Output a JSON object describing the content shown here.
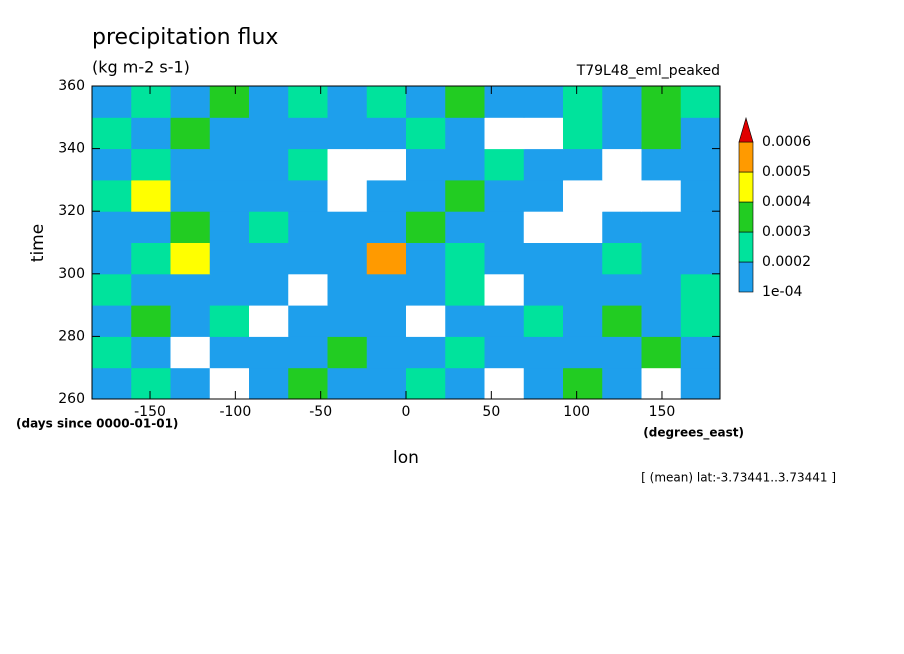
{
  "chart_data": {
    "type": "contour",
    "title": "precipitation flux",
    "subtitle": "(kg m-2 s-1)",
    "dataset": "T79L48_eml_peaked",
    "x_label": "lon",
    "x_units": "(degrees_east)",
    "y_label": "time",
    "y_units": "(days since 0000-01-01)",
    "annotation": "[ (mean) lat:-3.73441..3.73441 ]",
    "xlim": [
      -184,
      184
    ],
    "xticks": [
      -150,
      -100,
      -50,
      0,
      50,
      100,
      150
    ],
    "ylim": [
      260,
      360
    ],
    "yticks": [
      260,
      280,
      300,
      320,
      340,
      360
    ],
    "x": [
      -172.5,
      -149.5,
      -126.5,
      -103.5,
      -80.5,
      -57.5,
      -34.5,
      -11.5,
      11.5,
      34.5,
      57.5,
      80.5,
      103.5,
      126.5,
      149.5,
      172.5
    ],
    "y": [
      265,
      275,
      285,
      295,
      305,
      315,
      325,
      335,
      345,
      355
    ],
    "z": [
      [
        0.00015,
        0.00025,
        0.00015,
        5e-05,
        0.00015,
        0.00035,
        0.00015,
        0.00015,
        0.00025,
        0.00015,
        5e-05,
        0.00015,
        0.00035,
        0.00015,
        5e-05,
        0.00015
      ],
      [
        0.00025,
        0.00015,
        5e-05,
        0.00015,
        0.00015,
        0.00015,
        0.00035,
        0.00015,
        0.00015,
        0.00025,
        0.00015,
        0.00015,
        0.00015,
        0.00015,
        0.00035,
        0.00015
      ],
      [
        0.00015,
        0.00035,
        0.00015,
        0.00025,
        5e-05,
        0.00015,
        0.00015,
        0.00015,
        5e-05,
        0.00015,
        0.00015,
        0.00025,
        0.00015,
        0.00035,
        0.00015,
        0.00025
      ],
      [
        0.00025,
        0.00015,
        0.00015,
        0.00015,
        0.00015,
        5e-05,
        0.00015,
        0.00015,
        0.00015,
        0.00025,
        5e-05,
        0.00015,
        0.00015,
        0.00015,
        0.00015,
        0.00025
      ],
      [
        0.00015,
        0.00025,
        0.00045,
        0.00015,
        0.00015,
        0.00015,
        0.00015,
        0.00055,
        0.00015,
        0.00025,
        0.00015,
        0.00015,
        0.00015,
        0.00025,
        0.00015,
        0.00015
      ],
      [
        0.00015,
        0.00015,
        0.00035,
        0.00015,
        0.00025,
        0.00015,
        0.00015,
        0.00015,
        0.00035,
        0.00015,
        0.00015,
        5e-05,
        5e-05,
        0.00015,
        0.00015,
        0.00015
      ],
      [
        0.00025,
        0.00045,
        0.00015,
        0.00015,
        0.00015,
        0.00015,
        5e-05,
        0.00015,
        0.00015,
        0.00035,
        0.00015,
        0.00015,
        5e-05,
        5e-05,
        5e-05,
        0.00015
      ],
      [
        0.00015,
        0.00025,
        0.00015,
        0.00015,
        0.00015,
        0.00025,
        5e-05,
        5e-05,
        0.00015,
        0.00015,
        0.00025,
        0.00015,
        0.00015,
        5e-05,
        0.00015,
        0.00015
      ],
      [
        0.00025,
        0.00015,
        0.00035,
        0.00015,
        0.00015,
        0.00015,
        0.00015,
        0.00015,
        0.00025,
        0.00015,
        5e-05,
        5e-05,
        0.00025,
        0.00015,
        0.00035,
        0.00015
      ],
      [
        0.00015,
        0.00025,
        0.00015,
        0.00035,
        0.00015,
        0.00025,
        0.00015,
        0.00025,
        0.00015,
        0.00035,
        0.00015,
        0.00015,
        0.00025,
        0.00015,
        0.00035,
        0.00025
      ]
    ],
    "levels": [
      {
        "value": 0.0001,
        "label": "1e-04"
      },
      0.0002,
      0.0003,
      0.0004,
      0.0005,
      0.0006
    ],
    "colors": [
      "#1e9fec",
      "#00e39c",
      "#22cc22",
      "#ffff00",
      "#ff9a00",
      "#e00000"
    ]
  }
}
